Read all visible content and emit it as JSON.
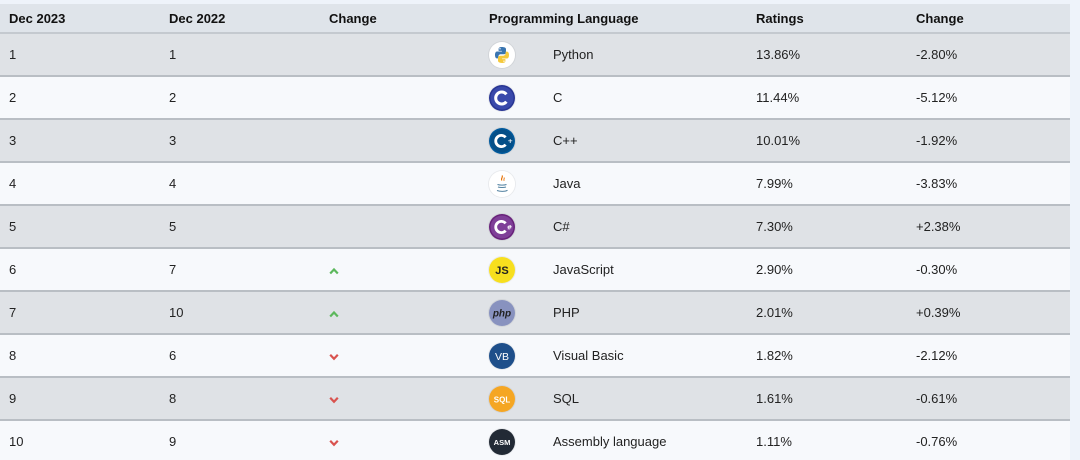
{
  "headers": {
    "rank_2023": "Dec 2023",
    "rank_2022": "Dec 2022",
    "change": "Change",
    "language": "Programming Language",
    "ratings": "Ratings",
    "rating_change": "Change"
  },
  "rows": [
    {
      "rank_2023": "1",
      "rank_2022": "1",
      "trend": "none",
      "icon": "python-icon",
      "language": "Python",
      "ratings": "13.86%",
      "change": "-2.80%"
    },
    {
      "rank_2023": "2",
      "rank_2022": "2",
      "trend": "none",
      "icon": "c-icon",
      "language": "C",
      "ratings": "11.44%",
      "change": "-5.12%"
    },
    {
      "rank_2023": "3",
      "rank_2022": "3",
      "trend": "none",
      "icon": "cpp-icon",
      "language": "C++",
      "ratings": "10.01%",
      "change": "-1.92%"
    },
    {
      "rank_2023": "4",
      "rank_2022": "4",
      "trend": "none",
      "icon": "java-icon",
      "language": "Java",
      "ratings": "7.99%",
      "change": "-3.83%"
    },
    {
      "rank_2023": "5",
      "rank_2022": "5",
      "trend": "none",
      "icon": "csharp-icon",
      "language": "C#",
      "ratings": "7.30%",
      "change": "+2.38%"
    },
    {
      "rank_2023": "6",
      "rank_2022": "7",
      "trend": "up",
      "icon": "javascript-icon",
      "language": "JavaScript",
      "ratings": "2.90%",
      "change": "-0.30%"
    },
    {
      "rank_2023": "7",
      "rank_2022": "10",
      "trend": "up",
      "icon": "php-icon",
      "language": "PHP",
      "ratings": "2.01%",
      "change": "+0.39%"
    },
    {
      "rank_2023": "8",
      "rank_2022": "6",
      "trend": "down",
      "icon": "visual-basic-icon",
      "language": "Visual Basic",
      "ratings": "1.82%",
      "change": "-2.12%"
    },
    {
      "rank_2023": "9",
      "rank_2022": "8",
      "trend": "down",
      "icon": "sql-icon",
      "language": "SQL",
      "ratings": "1.61%",
      "change": "-0.61%"
    },
    {
      "rank_2023": "10",
      "rank_2022": "9",
      "trend": "down",
      "icon": "assembly-icon",
      "language": "Assembly language",
      "ratings": "1.11%",
      "change": "-0.76%"
    }
  ],
  "icon_labels": {
    "javascript": "JS",
    "php": "php",
    "visual_basic": "VB",
    "sql": "SQL",
    "assembly": "ASM"
  },
  "colors": {
    "header_bg": "#dfe4ea",
    "row_odd": "#dfe2e6",
    "row_even": "#f7f9fc",
    "trend_up": "#5cb85c",
    "trend_down": "#d9534f"
  }
}
